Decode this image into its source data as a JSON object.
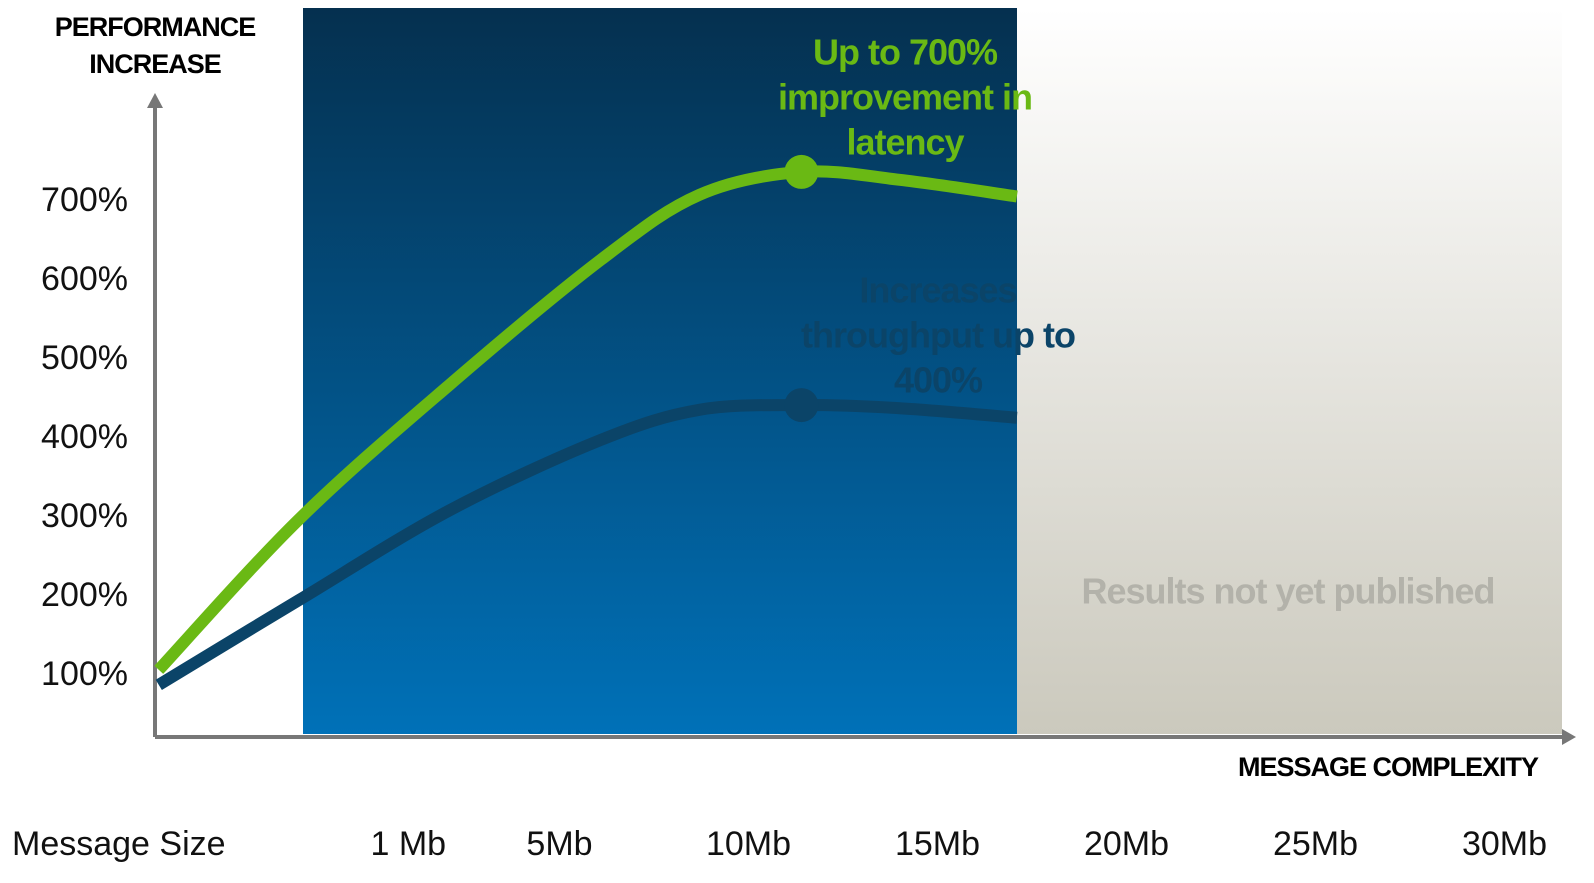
{
  "chart_data": {
    "type": "line",
    "y_title": [
      "PERFORMANCE",
      "INCREASE"
    ],
    "x_title": "MESSAGE COMPLEXITY",
    "x_row_title": "Message Size",
    "xlim": [
      -5.7,
      31.6
    ],
    "xticks": [
      {
        "value": 1,
        "label": "1 Mb"
      },
      {
        "value": 5,
        "label": "5Mb"
      },
      {
        "value": 10,
        "label": "10Mb"
      },
      {
        "value": 15,
        "label": "15Mb"
      },
      {
        "value": 20,
        "label": "20Mb"
      },
      {
        "value": 25,
        "label": "25Mb"
      },
      {
        "value": 30,
        "label": "30Mb"
      }
    ],
    "ylim": [
      23,
      829
    ],
    "yticks": [
      {
        "value": 100,
        "label": "100%"
      },
      {
        "value": 200,
        "label": "200%"
      },
      {
        "value": 300,
        "label": "300%"
      },
      {
        "value": 400,
        "label": "400%"
      },
      {
        "value": 500,
        "label": "500%"
      },
      {
        "value": 600,
        "label": "600%"
      },
      {
        "value": 700,
        "label": "700%"
      }
    ],
    "x": [
      -5.6,
      -1.9,
      2.1,
      6.1,
      8.7,
      11.4,
      14.0,
      17.1
    ],
    "series": [
      {
        "name": "Latency",
        "color": "#6ab914",
        "values": [
          108,
          298,
          469,
          627,
          709,
          738,
          728,
          707
        ]
      },
      {
        "name": "Throughput",
        "color": "#0b4468",
        "values": [
          89,
          196,
          310,
          399,
          437,
          443,
          439,
          427
        ]
      }
    ],
    "annotations": [
      {
        "lines": [
          "Up to 700%",
          "improvement in",
          "latency"
        ],
        "color": "#6ab914"
      },
      {
        "lines": [
          "Increases",
          "throughput  up to",
          "400%"
        ],
        "color": "#0b4468"
      },
      {
        "lines": [
          "Results not yet published"
        ],
        "color": "#b3b2aa"
      }
    ]
  }
}
